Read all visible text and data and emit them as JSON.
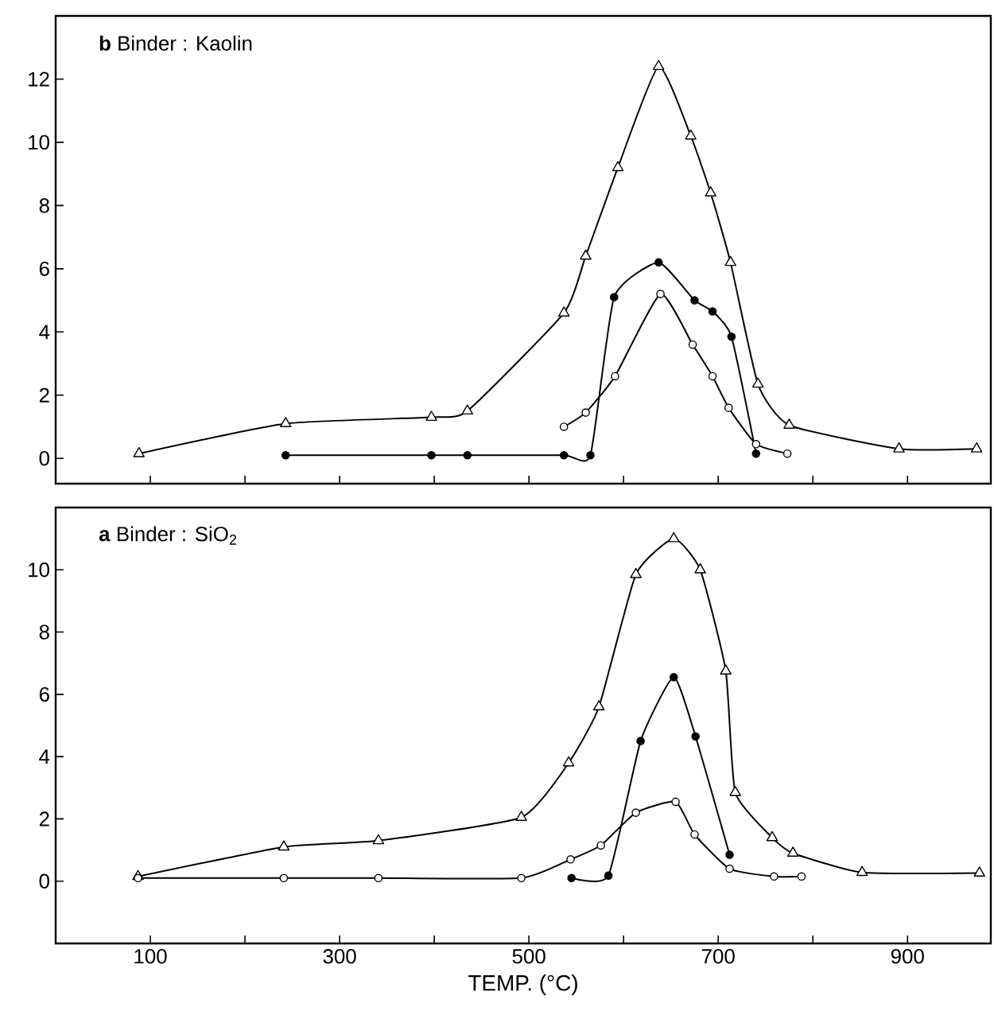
{
  "chart_data": [
    {
      "type": "line",
      "title": "**b** Binder : Kaolin",
      "xlim": [
        0,
        988
      ],
      "ylim": [
        -0.8,
        14
      ],
      "xticks": [
        100,
        {
          "value": 200,
          "label": null
        },
        300,
        {
          "value": 400,
          "label": null
        },
        500,
        {
          "value": 600,
          "label": null
        },
        700,
        {
          "value": 800,
          "label": null
        },
        900
      ],
      "yticks": [
        0,
        2,
        4,
        6,
        8,
        10,
        12
      ],
      "tick_labels": "y",
      "series": [
        {
          "color": "#000000",
          "marker": "triangle",
          "x": [
            88,
            243,
            397,
            435,
            537,
            560,
            594,
            637,
            671,
            692,
            713,
            742,
            775,
            891,
            973
          ],
          "values": [
            0.15,
            1.1,
            1.3,
            1.5,
            4.6,
            6.4,
            9.2,
            12.4,
            10.2,
            8.4,
            6.2,
            2.35,
            1.05,
            0.3,
            0.3
          ]
        },
        {
          "color": "#000000",
          "marker": "circle",
          "x": [
            243,
            397,
            435,
            537,
            565,
            590,
            637,
            675,
            694,
            714,
            740
          ],
          "values": [
            0.1,
            0.1,
            0.1,
            0.1,
            0.1,
            5.1,
            6.2,
            5.0,
            4.65,
            3.85,
            0.15
          ]
        },
        {
          "color": "#000000",
          "marker": "circle",
          "x": [
            537,
            560,
            591,
            639,
            673,
            694,
            711,
            740,
            773
          ],
          "values": [
            1.0,
            1.45,
            2.6,
            5.2,
            3.6,
            2.6,
            1.6,
            0.45,
            0.15
          ]
        }
      ]
    },
    {
      "type": "line",
      "title": "**a** Binder : SiO$_{2}$",
      "xlabel": "TEMP. (°C)",
      "xlim": [
        0,
        988
      ],
      "ylim": [
        -2,
        12
      ],
      "xticks": [
        100,
        {
          "value": 200,
          "label": null
        },
        300,
        {
          "value": 400,
          "label": null
        },
        500,
        {
          "value": 600,
          "label": null
        },
        700,
        {
          "value": 800,
          "label": null
        },
        900
      ],
      "yticks": [
        0,
        2,
        4,
        6,
        8,
        10
      ],
      "series": [
        {
          "color": "#000000",
          "marker": "triangle",
          "x": [
            87,
            241,
            341,
            492,
            542,
            574,
            613,
            653,
            681,
            708,
            718,
            757,
            779,
            852,
            976
          ],
          "values": [
            0.15,
            1.1,
            1.3,
            2.05,
            3.8,
            5.6,
            9.85,
            11.0,
            10.0,
            6.75,
            2.85,
            1.4,
            0.9,
            0.28,
            0.26
          ]
        },
        {
          "color": "#000000",
          "marker": "circle",
          "x": [
            545,
            584,
            618,
            653,
            676,
            712
          ],
          "values": [
            0.1,
            0.18,
            4.5,
            6.55,
            4.65,
            0.85
          ]
        },
        {
          "color": "#000000",
          "marker": "circle",
          "x": [
            87,
            241,
            341,
            492,
            544,
            576,
            613,
            655,
            675,
            712,
            759,
            788
          ],
          "values": [
            0.1,
            0.1,
            0.1,
            0.1,
            0.7,
            1.15,
            2.2,
            2.55,
            1.5,
            0.4,
            0.15,
            0.15
          ]
        }
      ]
    }
  ]
}
